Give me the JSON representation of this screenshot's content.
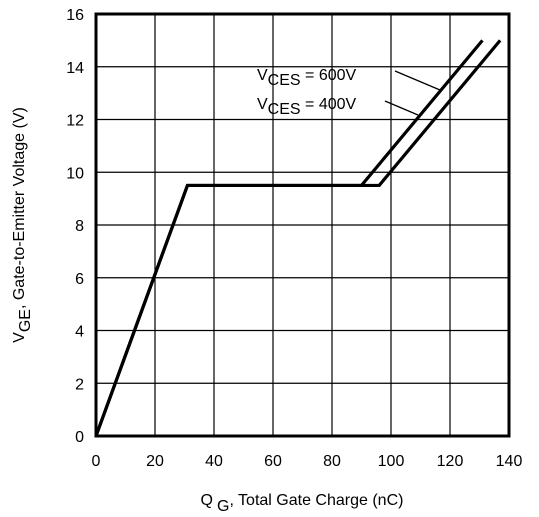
{
  "chart_data": {
    "type": "line",
    "xlabel_main": "Q",
    "xlabel_sub": "G",
    "xlabel_rest": ", Total Gate Charge (nC)",
    "ylabel_main": "V",
    "ylabel_sub": "GE",
    "ylabel_rest": ", Gate-to-Emitter Voltage (V)",
    "xlim": [
      0,
      140
    ],
    "ylim": [
      0,
      16
    ],
    "xticks": [
      0,
      20,
      40,
      60,
      80,
      100,
      120,
      140
    ],
    "yticks": [
      0,
      2,
      4,
      6,
      8,
      10,
      12,
      14,
      16
    ],
    "grid": true,
    "series": [
      {
        "name": "V CES = 600V",
        "label_main": "V",
        "label_sub": "CES",
        "label_rest": " = 600V",
        "x": [
          0,
          31,
          90,
          131
        ],
        "y": [
          0,
          9.5,
          9.5,
          15
        ]
      },
      {
        "name": "V CES = 400V",
        "label_main": "V",
        "label_sub": "CES",
        "label_rest": " = 400V",
        "x": [
          0,
          31,
          96,
          137
        ],
        "y": [
          0,
          9.5,
          9.5,
          15
        ]
      }
    ]
  }
}
